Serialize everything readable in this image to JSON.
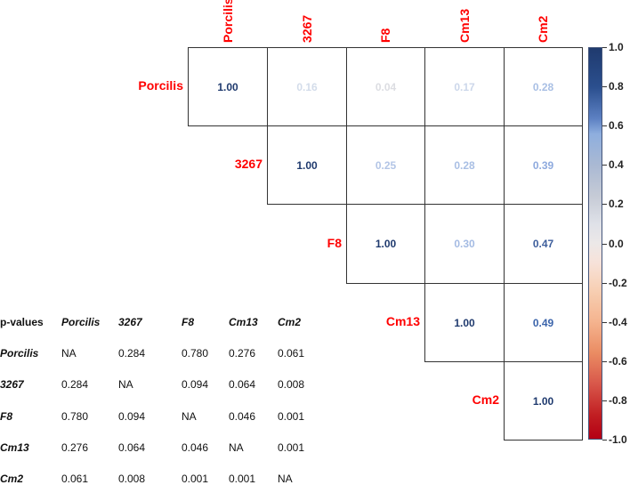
{
  "chart_data": [
    {
      "type": "heatmap",
      "title": "",
      "variables": [
        "Porcilis",
        "3267",
        "F8",
        "Cm13",
        "Cm2"
      ],
      "layout": "upper-triangle correlation matrix",
      "matrix": [
        [
          1.0,
          0.16,
          0.04,
          0.17,
          0.28
        ],
        [
          null,
          1.0,
          0.25,
          0.28,
          0.39
        ],
        [
          null,
          null,
          1.0,
          0.3,
          0.47
        ],
        [
          null,
          null,
          null,
          1.0,
          0.49
        ],
        [
          null,
          null,
          null,
          null,
          1.0
        ]
      ],
      "colorbar": {
        "range": [
          -1.0,
          1.0
        ],
        "ticks": [
          "1.0",
          "0.8",
          "0.6",
          "0.4",
          "0.2",
          "0.0",
          "-0.2",
          "-0.4",
          "-0.6",
          "-0.8",
          "-1.0"
        ],
        "high_color": "#1f3a6e",
        "mid_color": "#eeeeee",
        "low_color": "#b40014"
      }
    },
    {
      "type": "table",
      "title": "p-values",
      "columns": [
        "Porcilis",
        "3267",
        "F8",
        "Cm13",
        "Cm2"
      ],
      "rows": [
        {
          "label": "Porcilis",
          "values": [
            "NA",
            "0.284",
            "0.780",
            "0.276",
            "0.061"
          ]
        },
        {
          "label": "3267",
          "values": [
            "0.284",
            "NA",
            "0.094",
            "0.064",
            "0.008"
          ]
        },
        {
          "label": "F8",
          "values": [
            "0.780",
            "0.094",
            "NA",
            "0.046",
            "0.001"
          ]
        },
        {
          "label": "Cm13",
          "values": [
            "0.276",
            "0.064",
            "0.046",
            "NA",
            "0.001"
          ]
        },
        {
          "label": "Cm2",
          "values": [
            "0.061",
            "0.008",
            "0.001",
            "0.001",
            "NA"
          ]
        }
      ]
    }
  ],
  "labels": [
    "Porcilis",
    "3267",
    "F8",
    "Cm13",
    "Cm2"
  ],
  "cells": {
    "r0": [
      "1.00",
      "0.16",
      "0.04",
      "0.17",
      "0.28"
    ],
    "r1": [
      "1.00",
      "0.25",
      "0.28",
      "0.39"
    ],
    "r2": [
      "1.00",
      "0.30",
      "0.47"
    ],
    "r3": [
      "1.00",
      "0.49"
    ],
    "r4": [
      "1.00"
    ]
  },
  "cell_colors": {
    "r0": [
      "#1f3a6e",
      "#d3dcea",
      "#dcdde2",
      "#ccd7ea",
      "#a9bfe4"
    ],
    "r1": [
      "#1f3a6e",
      "#b3c5e6",
      "#a9bfe4",
      "#8eaade"
    ],
    "r2": [
      "#1f3a6e",
      "#a4bbe3",
      "#3d5e9c"
    ],
    "r3": [
      "#1f3a6e",
      "#3b64ab"
    ],
    "r4": [
      "#1f3a6e"
    ]
  },
  "colorbar_ticks": [
    "1.0",
    "0.8",
    "0.6",
    "0.4",
    "0.2",
    "0.0",
    "-0.2",
    "-0.4",
    "-0.6",
    "-0.8",
    "-1.0"
  ],
  "pvalues": {
    "title": "p-values",
    "columns": [
      "Porcilis",
      "3267",
      "F8",
      "Cm13",
      "Cm2"
    ],
    "rows": [
      {
        "label": "Porcilis",
        "values": [
          "NA",
          "0.284",
          "0.780",
          "0.276",
          "0.061"
        ]
      },
      {
        "label": "3267",
        "values": [
          "0.284",
          "NA",
          "0.094",
          "0.064",
          "0.008"
        ]
      },
      {
        "label": "F8",
        "values": [
          "0.780",
          "0.094",
          "NA",
          "0.046",
          "0.001"
        ]
      },
      {
        "label": "Cm13",
        "values": [
          "0.276",
          "0.064",
          "0.046",
          "NA",
          "0.001"
        ]
      },
      {
        "label": "Cm2",
        "values": [
          "0.061",
          "0.008",
          "0.001",
          "0.001",
          "NA"
        ]
      }
    ]
  }
}
